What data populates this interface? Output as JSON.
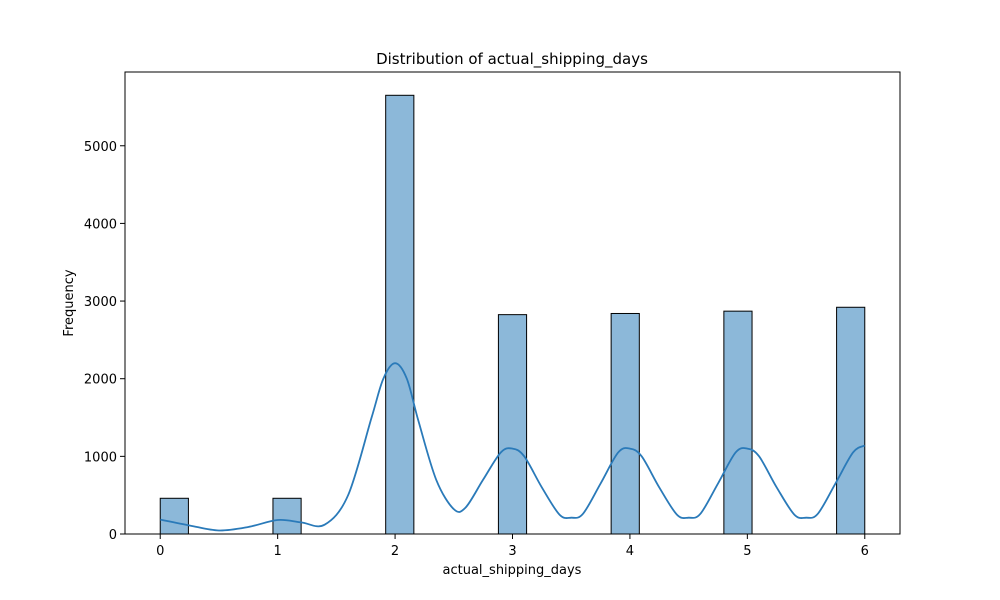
{
  "chart_data": {
    "type": "bar",
    "title": "Distribution of actual_shipping_days",
    "xlabel": "actual_shipping_days",
    "ylabel": "Frequency",
    "xlim": [
      -0.3,
      6.3
    ],
    "ylim": [
      0,
      5950
    ],
    "x_ticks": [
      0,
      1,
      2,
      3,
      4,
      5,
      6
    ],
    "y_ticks": [
      0,
      1000,
      2000,
      3000,
      4000,
      5000
    ],
    "bin_width": 0.24,
    "bins": [
      {
        "x0": 0.0,
        "x1": 0.24,
        "count": 460
      },
      {
        "x0": 0.96,
        "x1": 1.2,
        "count": 460
      },
      {
        "x0": 1.92,
        "x1": 2.16,
        "count": 5650
      },
      {
        "x0": 2.88,
        "x1": 3.12,
        "count": 2825
      },
      {
        "x0": 3.84,
        "x1": 4.08,
        "count": 2840
      },
      {
        "x0": 4.8,
        "x1": 5.04,
        "count": 2870
      },
      {
        "x0": 5.76,
        "x1": 6.0,
        "count": 2920
      }
    ],
    "kde": {
      "x": [
        0,
        0.25,
        0.5,
        0.75,
        1.0,
        1.2,
        1.4,
        1.6,
        1.8,
        1.9,
        2.0,
        2.1,
        2.2,
        2.35,
        2.5,
        2.6,
        2.75,
        2.9,
        3.0,
        3.1,
        3.25,
        3.4,
        3.5,
        3.6,
        3.75,
        3.9,
        4.0,
        4.1,
        4.25,
        4.4,
        4.5,
        4.6,
        4.75,
        4.9,
        5.0,
        5.1,
        5.25,
        5.4,
        5.5,
        5.6,
        5.75,
        5.9,
        6.0
      ],
      "y": [
        185,
        110,
        45,
        90,
        180,
        150,
        120,
        500,
        1500,
        2000,
        2200,
        2000,
        1450,
        700,
        320,
        340,
        700,
        1050,
        1100,
        1000,
        600,
        250,
        210,
        260,
        650,
        1050,
        1100,
        1000,
        600,
        250,
        210,
        260,
        650,
        1050,
        1100,
        1000,
        600,
        250,
        210,
        260,
        650,
        1050,
        1140
      ]
    },
    "colors": {
      "bar_fill": "#8cb8d9",
      "bar_edge": "#000000",
      "kde_line": "#2a7ab9"
    },
    "grid": false,
    "legend": "none"
  }
}
